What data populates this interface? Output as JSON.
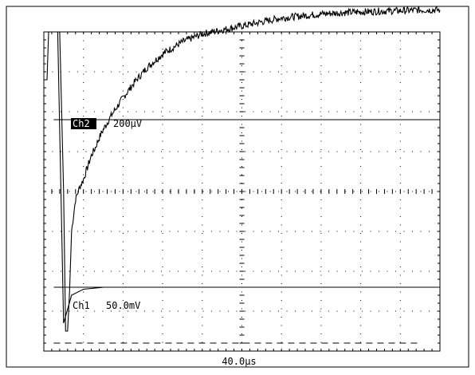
{
  "chart_data": {
    "type": "line",
    "title": "",
    "xlabel": "",
    "ylabel": "",
    "x_divisions": 10,
    "y_divisions": 8,
    "grid": "dotted",
    "channels": [
      {
        "name": "Ch2",
        "scale_value": "200µV",
        "label_style": "inverted"
      },
      {
        "name": "Ch1",
        "scale_value": "50.0mV",
        "label_style": "plain"
      }
    ],
    "timebase": "40.0µs",
    "series": [
      {
        "name": "Ch2",
        "x_div": [
          0.3,
          0.4,
          0.5,
          0.55,
          0.6,
          0.65,
          0.7,
          0.8,
          0.9,
          1.0,
          1.1,
          1.2,
          1.3,
          1.4,
          1.5,
          1.7,
          2.0,
          2.3,
          2.6,
          3.0,
          3.5,
          4.0,
          4.5,
          5.0,
          5.5,
          6.0,
          6.5,
          7.0,
          7.5,
          8.0,
          8.5,
          9.0,
          9.5,
          10.0
        ],
        "y_div": [
          8.0,
          8.0,
          4.0,
          0.5,
          0.5,
          1.5,
          3.0,
          3.8,
          4.1,
          4.3,
          4.6,
          4.9,
          5.1,
          5.35,
          5.55,
          5.9,
          6.35,
          6.75,
          7.1,
          7.45,
          7.75,
          7.95,
          8.05,
          8.15,
          8.25,
          8.35,
          8.4,
          8.45,
          8.48,
          8.5,
          8.52,
          8.53,
          8.55,
          8.55
        ]
      },
      {
        "name": "Ch1",
        "x_div": [
          0.0,
          0.08,
          0.12,
          0.25,
          0.35,
          0.5,
          0.7,
          1.0,
          1.5,
          2.0,
          3.0,
          5.0,
          7.0,
          10.0
        ],
        "y_div": [
          6.8,
          6.8,
          8.0,
          8.0,
          8.0,
          0.7,
          1.4,
          1.55,
          1.6,
          1.6,
          1.6,
          1.6,
          1.6,
          1.6
        ]
      }
    ],
    "reference_lines_div": [
      {
        "name": "ch2-marker-upper",
        "y_div": 5.8
      },
      {
        "name": "ch1-marker-lower",
        "y_div": 1.6
      },
      {
        "name": "ch1-ground-dashed",
        "y_div": 0.2
      }
    ]
  }
}
